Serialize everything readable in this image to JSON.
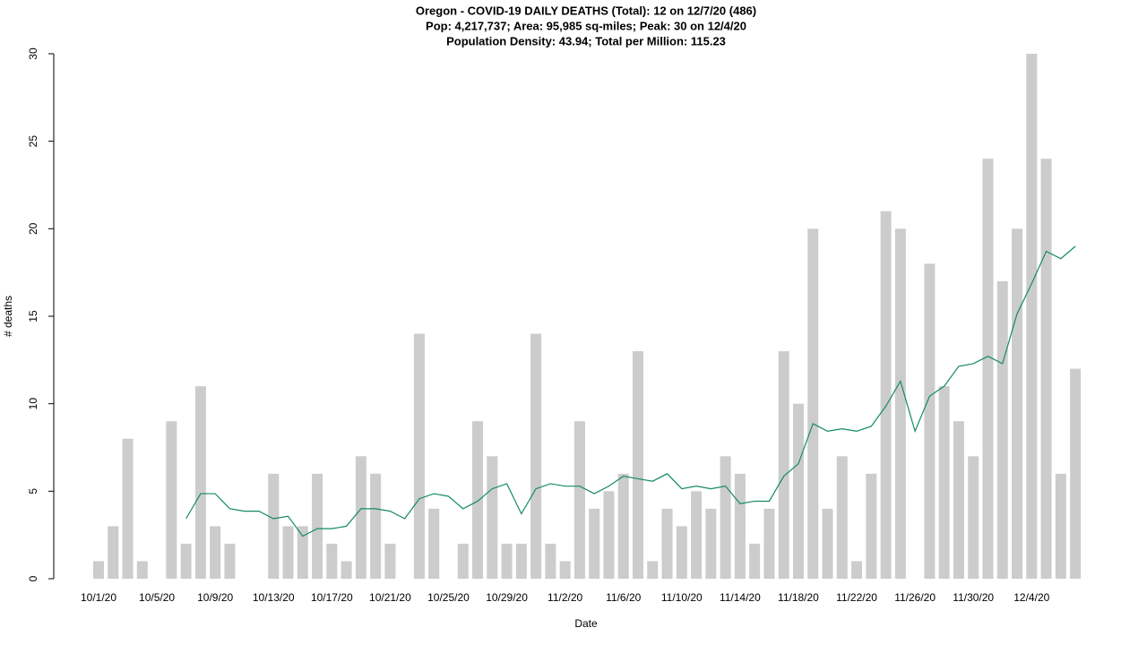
{
  "chart_data": {
    "type": "bar",
    "title": "Oregon - COVID-19 DAILY DEATHS (Total): 12 on 12/7/20 (486)",
    "subtitle": [
      "Pop: 4,217,737; Area: 95,985 sq-miles; Peak: 30 on 12/4/20",
      "Population Density: 43.94; Total per Million: 115.23"
    ],
    "x_label": "Date",
    "y_label": "# deaths",
    "categories": [
      "10/1/20",
      null,
      null,
      null,
      "10/5/20",
      null,
      null,
      null,
      "10/9/20",
      null,
      null,
      null,
      "10/13/20",
      null,
      null,
      null,
      "10/17/20",
      null,
      null,
      null,
      "10/21/20",
      null,
      null,
      null,
      "10/25/20",
      null,
      null,
      null,
      "10/29/20",
      null,
      null,
      null,
      "11/2/20",
      null,
      null,
      null,
      "11/6/20",
      null,
      null,
      null,
      "11/10/20",
      null,
      null,
      null,
      "11/14/20",
      null,
      null,
      null,
      "11/18/20",
      null,
      null,
      null,
      "11/22/20",
      null,
      null,
      null,
      "11/26/20",
      null,
      null,
      null,
      "11/30/20",
      null,
      null,
      null,
      "12/4/20",
      null,
      null,
      null
    ],
    "series": [
      {
        "type": "bar",
        "color": "#cccccc",
        "values": [
          1,
          3,
          8,
          1,
          0,
          9,
          2,
          11,
          3,
          2,
          0,
          0,
          6,
          3,
          3,
          6,
          2,
          1,
          7,
          6,
          2,
          0,
          14,
          4,
          0,
          2,
          9,
          7,
          2,
          2,
          14,
          2,
          1,
          9,
          4,
          5,
          6,
          13,
          1,
          4,
          3,
          5,
          4,
          7,
          6,
          2,
          4,
          13,
          10,
          20,
          4,
          7,
          1,
          6,
          21,
          20,
          0,
          18,
          11,
          9,
          7,
          24,
          17,
          20,
          30,
          24,
          6,
          12
        ]
      },
      {
        "type": "line",
        "color": "#138a68",
        "values": [
          null,
          null,
          null,
          null,
          null,
          null,
          3.43,
          4.86,
          4.86,
          4.0,
          3.86,
          3.86,
          3.43,
          3.57,
          2.43,
          2.86,
          2.86,
          3.0,
          4.0,
          4.0,
          3.86,
          3.43,
          4.57,
          4.86,
          4.71,
          4.0,
          4.43,
          5.14,
          5.43,
          3.71,
          5.14,
          5.43,
          5.29,
          5.29,
          4.86,
          5.29,
          5.86,
          5.71,
          5.57,
          6.0,
          5.14,
          5.29,
          5.14,
          5.29,
          4.29,
          4.43,
          4.43,
          5.86,
          6.57,
          8.86,
          8.43,
          8.57,
          8.43,
          8.71,
          9.86,
          11.29,
          8.43,
          10.43,
          11.0,
          12.14,
          12.29,
          12.71,
          12.29,
          15.14,
          16.86,
          18.71,
          18.29,
          19.0
        ]
      }
    ],
    "ylim": [
      0,
      30
    ],
    "yticks": [
      0,
      5,
      10,
      15,
      20,
      25,
      30
    ]
  }
}
